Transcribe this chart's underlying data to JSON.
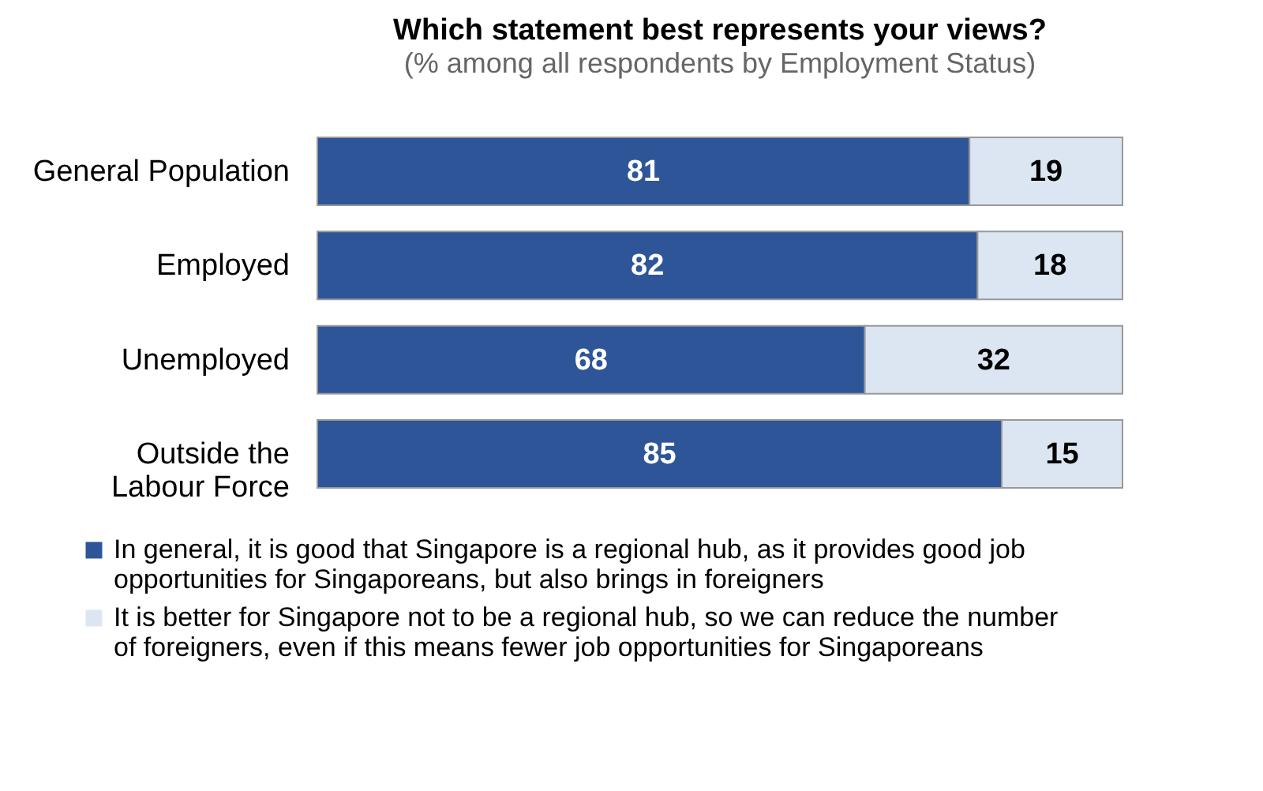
{
  "chart_data": {
    "type": "bar",
    "orientation": "horizontal",
    "stacked": true,
    "data_labels": true,
    "legend": "bottom",
    "title": "Which statement best represents your views?",
    "subtitle": "(% among all respondents by Employment Status)",
    "categories": [
      "General Population",
      "Employed",
      "Unemployed",
      "Outside the Labour Force"
    ],
    "series": [
      {
        "name": "In general, it is good that Singapore is a regional hub, as it provides good job opportunities for Singaporeans, but also brings in foreigners",
        "color": "#2e5597",
        "values": [
          81,
          82,
          68,
          85
        ]
      },
      {
        "name": "It is better for Singapore not to be a regional hub, so we can reduce the number of foreigners, even if this means fewer job opportunities for Singaporeans",
        "color": "#dce6f2",
        "values": [
          19,
          18,
          32,
          15
        ]
      }
    ]
  }
}
